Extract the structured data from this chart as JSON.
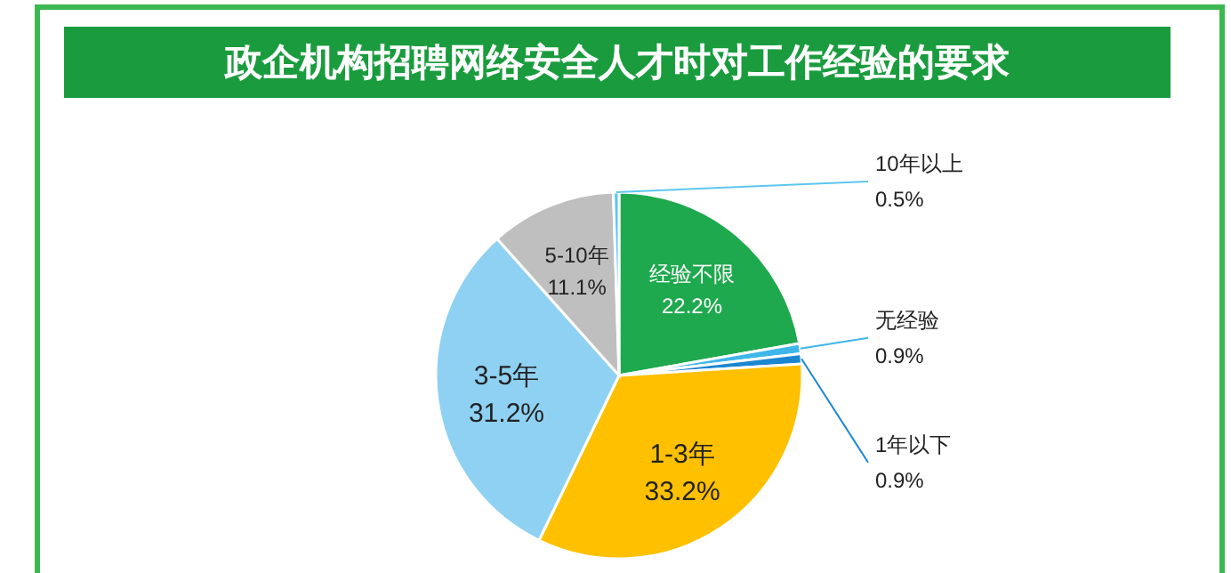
{
  "chart_data": {
    "type": "pie",
    "title": "政企机构招聘网络安全人才时对工作经验的要求",
    "categories": [
      "经验不限",
      "无经验",
      "1年以下",
      "1-3年",
      "3-5年",
      "5-10年",
      "10年以上"
    ],
    "values": [
      22.2,
      0.9,
      0.9,
      33.2,
      31.2,
      11.1,
      0.5
    ],
    "value_labels": [
      "22.2%",
      "0.9%",
      "0.9%",
      "33.2%",
      "31.2%",
      "11.1%",
      "0.5%"
    ],
    "colors": [
      "#1fa94e",
      "#3fb6ea",
      "#1c86d1",
      "#ffc000",
      "#8fd1f2",
      "#bfbfbf",
      "#5cc6f0"
    ]
  }
}
